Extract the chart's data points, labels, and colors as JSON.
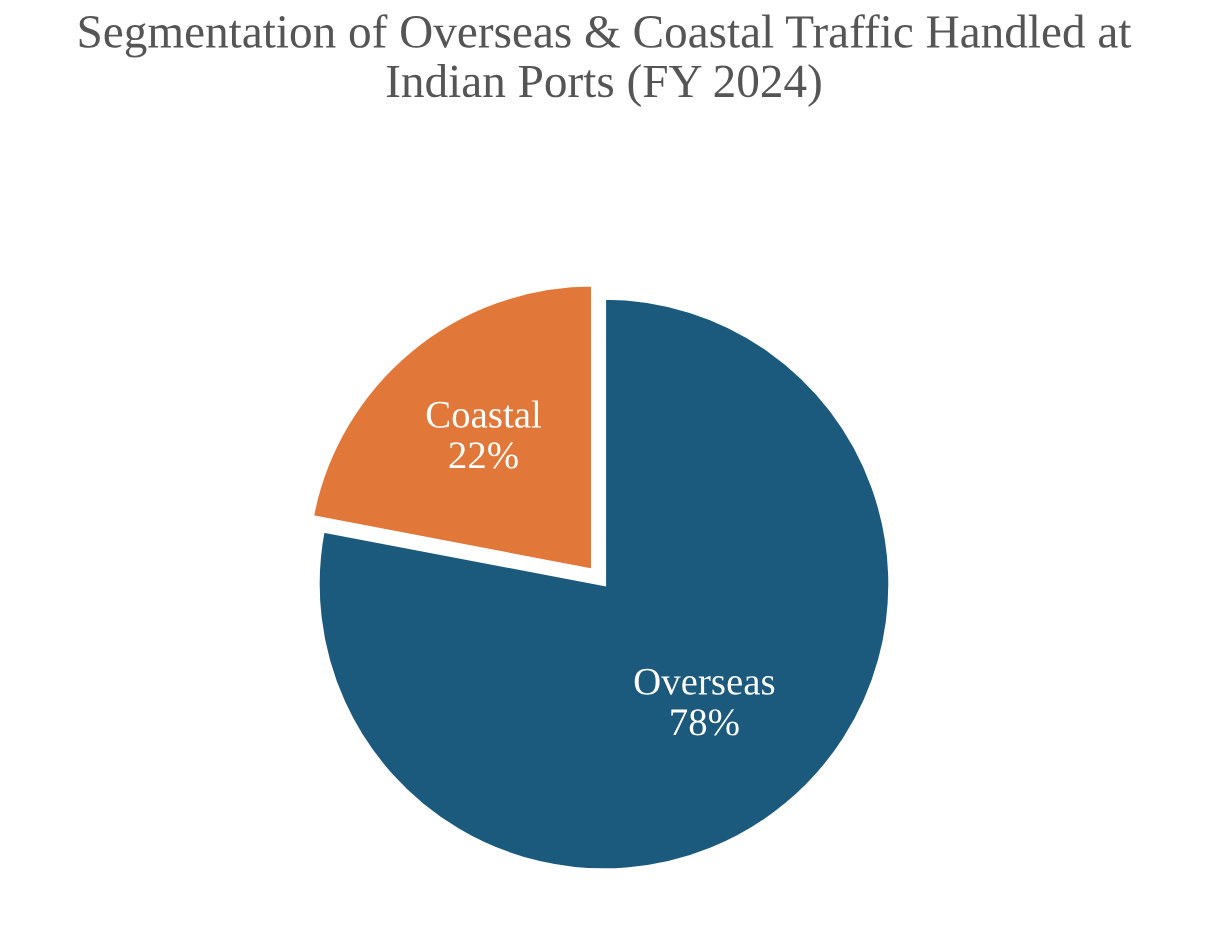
{
  "chart_data": {
    "type": "pie",
    "title": "Segmentation of Overseas & Coastal Traffic Handled at\nIndian Ports (FY 2024)",
    "categories": [
      "Overseas",
      "Coastal"
    ],
    "values": [
      78,
      22
    ],
    "value_labels": [
      "78%",
      "22%"
    ],
    "colors": [
      "#1b5a7d",
      "#e2773a"
    ],
    "legend": false
  }
}
